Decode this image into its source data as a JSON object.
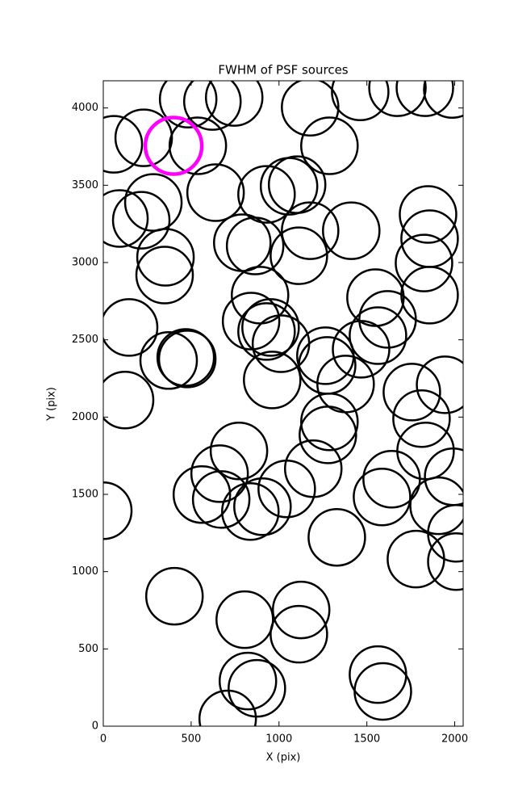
{
  "chart_data": {
    "type": "scatter",
    "title": "FWHM of PSF sources",
    "x_label": "X (pix)",
    "y_label": "Y (pix)",
    "xlim": [
      0,
      2048
    ],
    "ylim": [
      0,
      4176
    ],
    "xticks": [
      0,
      500,
      1000,
      1500,
      2000
    ],
    "yticks": [
      0,
      500,
      1000,
      1500,
      2000,
      2500,
      3000,
      3500,
      4000
    ],
    "grid": false,
    "series": [
      {
        "color": "#000000",
        "x": [
          60,
          230,
          483,
          621,
          745,
          538,
          1177,
          1462,
          1674,
          1830,
          1986,
          1287,
          92,
          216,
          285,
          354,
          349,
          639,
          929,
          1057,
          1103,
          1177,
          1411,
          791,
          864,
          1113,
          1848,
          1857,
          1825,
          1857,
          892,
          841,
          929,
          952,
          1011,
          147,
          372,
          478,
          469,
          1264,
          1274,
          1467,
          1549,
          1618,
          1563,
          961,
          1379,
          124,
          1756,
          1811,
          1945,
          1287,
          1278,
          772,
          1834,
          662,
          561,
          671,
          1195,
          1044,
          906,
          837,
          1641,
          1586,
          1991,
          1908,
          2009,
          1329,
          0,
          1779,
          2009,
          405,
          1126,
          1113,
          805,
          1563,
          1591,
          823,
          874,
          708
        ],
        "y": [
          3765,
          3807,
          4057,
          4042,
          4068,
          3755,
          4005,
          4104,
          4131,
          4131,
          4120,
          3755,
          3285,
          3274,
          3389,
          3034,
          2919,
          3452,
          3441,
          3493,
          3504,
          3206,
          3206,
          3128,
          3107,
          3044,
          3311,
          3154,
          2997,
          2789,
          2789,
          2621,
          2554,
          2580,
          2475,
          2580,
          2366,
          2376,
          2386,
          2397,
          2334,
          2439,
          2773,
          2632,
          2527,
          2240,
          2214,
          2110,
          2162,
          1990,
          2209,
          1969,
          1885,
          1781,
          1781,
          1634,
          1499,
          1467,
          1666,
          1535,
          1420,
          1389,
          1598,
          1483,
          1614,
          1426,
          1248,
          1222,
          1394,
          1081,
          1065,
          841,
          752,
          595,
          689,
          334,
          225,
          292,
          245,
          47
        ]
      },
      {
        "color": "#ff00ff",
        "x": [
          400
        ],
        "y": [
          3755
        ]
      }
    ]
  }
}
